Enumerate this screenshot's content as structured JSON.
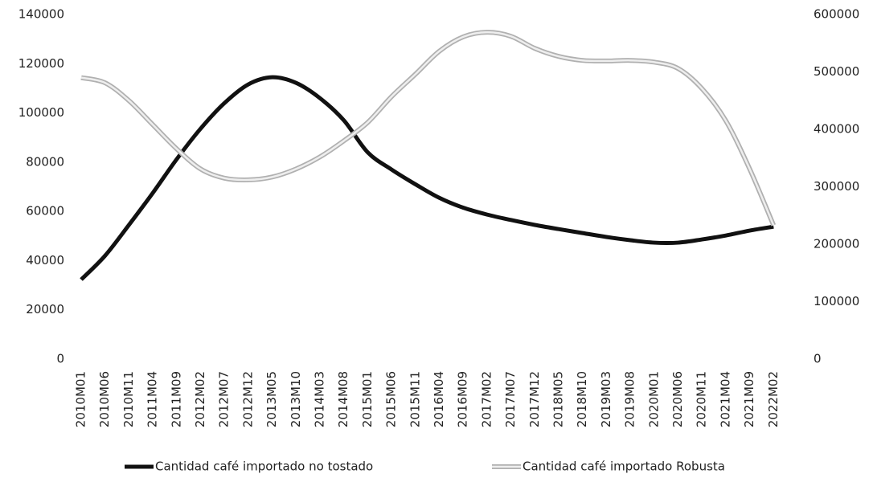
{
  "chart_data": {
    "type": "line",
    "categories": [
      "2010M01",
      "2010M06",
      "2010M11",
      "2011M04",
      "2011M09",
      "2012M02",
      "2012M07",
      "2012M12",
      "2013M05",
      "2013M10",
      "2014M03",
      "2014M08",
      "2015M01",
      "2015M06",
      "2015M11",
      "2016M04",
      "2016M09",
      "2017M02",
      "2017M07",
      "2017M12",
      "2018M05",
      "2018M10",
      "2019M03",
      "2019M08",
      "2020M01",
      "2020M06",
      "2020M11",
      "2021M04",
      "2021M09",
      "2022M02"
    ],
    "series": [
      {
        "name": "Cantidad café importado no tostado",
        "color": "#111111",
        "values": [
          32300,
          42000,
          54500,
          67500,
          81200,
          93600,
          104000,
          111600,
          114500,
          112200,
          106000,
          97000,
          84000,
          77000,
          71000,
          65500,
          61500,
          58700,
          56500,
          54500,
          52800,
          51200,
          49600,
          48300,
          47300,
          47300,
          48600,
          50200,
          52200,
          53800
        ]
      },
      {
        "name": "Cantidad café importado Robusta",
        "color": "#b0b0b0",
        "axis": "y2",
        "values": [
          490000,
          481000,
          450000,
          408000,
          366000,
          331000,
          315000,
          312000,
          317000,
          331000,
          352000,
          380000,
          412000,
          457000,
          496000,
          536000,
          561000,
          569000,
          562000,
          541000,
          527000,
          520000,
          519000,
          520000,
          517000,
          506000,
          471000,
          415000,
          331000,
          233000
        ]
      }
    ],
    "ylim": [
      0,
      140000
    ],
    "yticks": [
      0,
      20000,
      40000,
      60000,
      80000,
      100000,
      120000,
      140000
    ],
    "y2lim": [
      0,
      600000
    ],
    "y2ticks": [
      0,
      100000,
      200000,
      300000,
      400000,
      500000,
      600000
    ],
    "grid": false,
    "legend": "bottom"
  }
}
